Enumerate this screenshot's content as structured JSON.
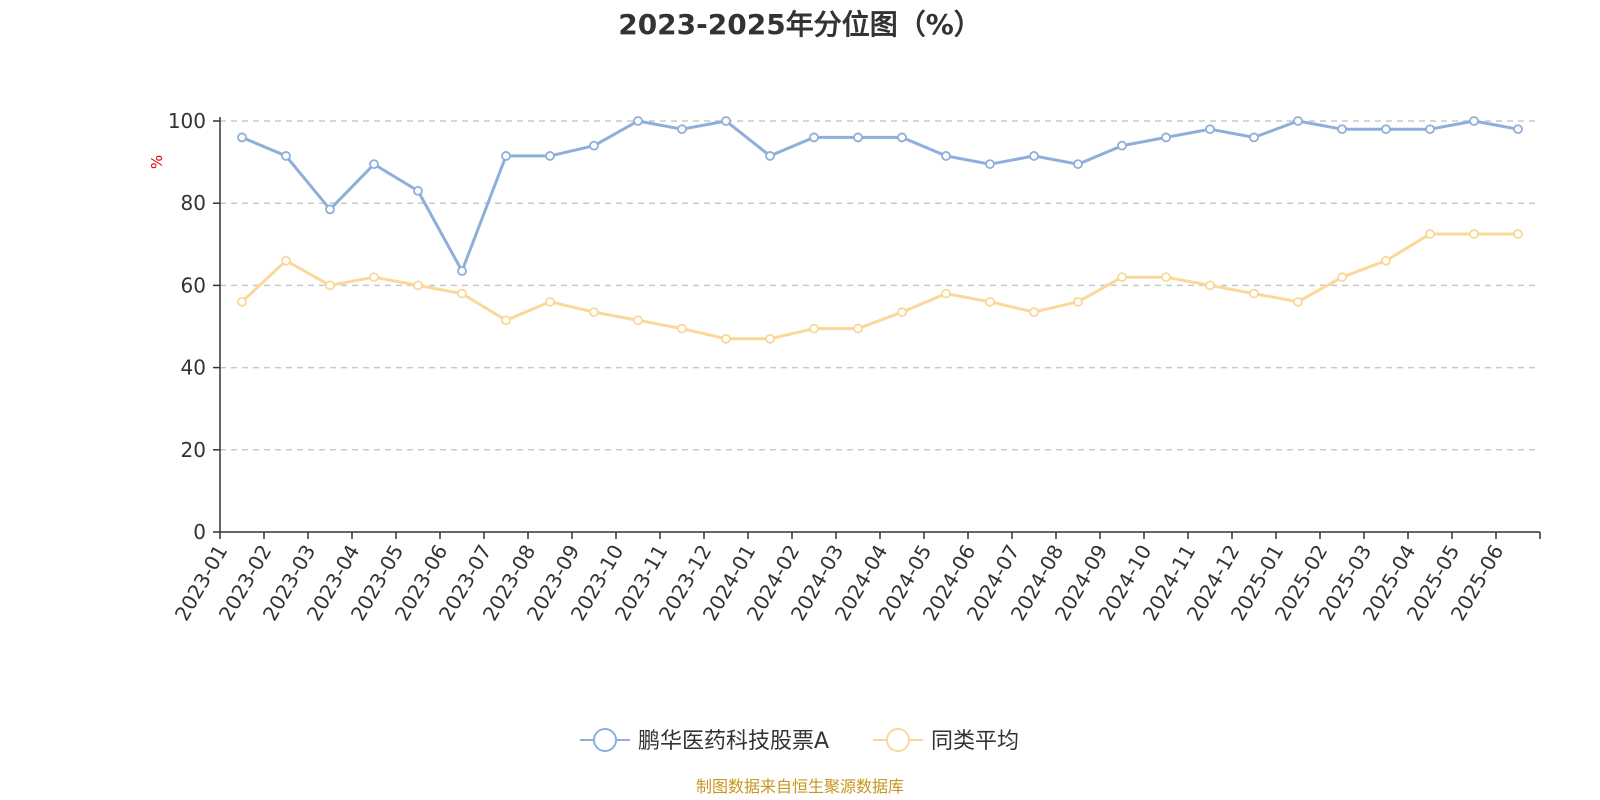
{
  "chart_data": {
    "type": "line",
    "title": "2023-2025年分位图（%）",
    "ylabel": "%",
    "ylim": [
      0,
      100
    ],
    "yticks": [
      0,
      20,
      40,
      60,
      80,
      100
    ],
    "grid": true,
    "legend_position": "bottom",
    "categories": [
      "2023-01",
      "2023-02",
      "2023-03",
      "2023-04",
      "2023-05",
      "2023-06",
      "2023-07",
      "2023-08",
      "2023-09",
      "2023-10",
      "2023-11",
      "2023-12",
      "2024-01",
      "2024-02",
      "2024-03",
      "2024-04",
      "2024-05",
      "2024-06",
      "2024-07",
      "2024-08",
      "2024-09",
      "2024-10",
      "2024-11",
      "2024-12",
      "2025-01",
      "2025-02",
      "2025-03",
      "2025-04",
      "2025-05",
      "2025-06"
    ],
    "series": [
      {
        "name": "鹏华医药科技股票A",
        "color": "#8eaedb",
        "values": [
          96,
          91.5,
          78.5,
          89.5,
          83,
          63.5,
          91.5,
          91.5,
          94,
          100,
          98,
          100,
          91.5,
          96,
          96,
          96,
          91.5,
          89.5,
          91.5,
          89.5,
          94,
          96,
          98,
          96,
          100,
          98,
          98,
          98,
          100,
          98
        ]
      },
      {
        "name": "同类平均",
        "color": "#fbd899",
        "values": [
          56,
          66,
          60,
          62,
          60,
          58,
          51.5,
          56,
          53.5,
          51.5,
          49.5,
          47,
          47,
          49.5,
          49.5,
          53.5,
          58,
          56,
          53.5,
          56,
          62,
          62,
          60,
          58,
          56,
          62,
          66,
          72.5,
          72.5,
          72.5
        ]
      }
    ],
    "source": "制图数据来自恒生聚源数据库"
  }
}
